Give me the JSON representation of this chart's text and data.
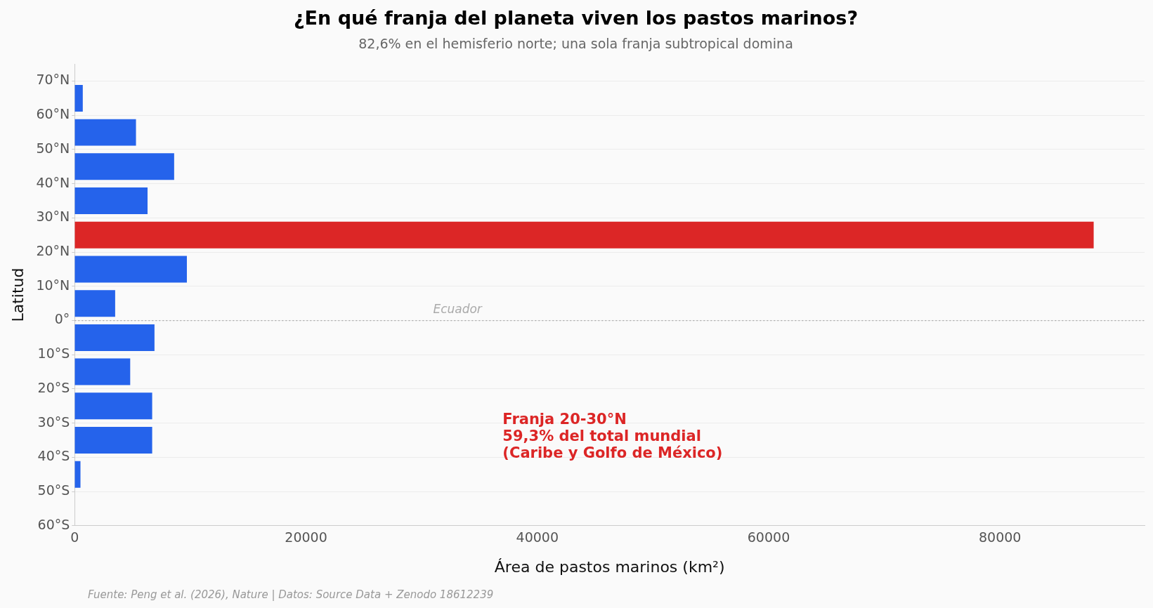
{
  "chart_data": {
    "type": "bar",
    "orientation": "horizontal",
    "title": "¿En qué franja del planeta viven los pastos marinos?",
    "subtitle": "82,6% en el hemisferio norte; una sola franja subtropical domina",
    "xlabel": "Área de pastos marinos (km²)",
    "ylabel": "Latitud",
    "x": [
      65,
      55,
      45,
      35,
      25,
      15,
      5,
      -5,
      -15,
      -25,
      -35,
      -45
    ],
    "values": [
      700,
      5300,
      8600,
      6300,
      88100,
      9700,
      3500,
      6900,
      4800,
      6700,
      6700,
      500
    ],
    "colors": [
      "#2563eb",
      "#2563eb",
      "#2563eb",
      "#2563eb",
      "#dc2626",
      "#2563eb",
      "#2563eb",
      "#2563eb",
      "#2563eb",
      "#2563eb",
      "#2563eb",
      "#2563eb"
    ],
    "xlim": [
      0,
      92500
    ],
    "xticks": [
      0,
      20000,
      40000,
      60000,
      80000
    ],
    "ylim": [
      -60,
      75
    ],
    "yticks": [
      {
        "value": 70,
        "label": "70°N"
      },
      {
        "value": 60,
        "label": "60°N"
      },
      {
        "value": 50,
        "label": "50°N"
      },
      {
        "value": 40,
        "label": "40°N"
      },
      {
        "value": 30,
        "label": "30°N"
      },
      {
        "value": 20,
        "label": "20°N"
      },
      {
        "value": 10,
        "label": "10°N"
      },
      {
        "value": 0,
        "label": "0°"
      },
      {
        "value": -10,
        "label": "10°S"
      },
      {
        "value": -20,
        "label": "20°S"
      },
      {
        "value": -30,
        "label": "30°S"
      },
      {
        "value": -40,
        "label": "40°S"
      },
      {
        "value": -50,
        "label": "50°S"
      },
      {
        "value": -60,
        "label": "60°S"
      }
    ],
    "grid": "y",
    "legend": false,
    "ref_lines": [
      {
        "axis": "y",
        "value": 0,
        "label": "Ecuador",
        "color": "#aaaaaa",
        "line_style": "dotted"
      }
    ],
    "annotations": [
      "Franja 20-30°N\n59,3% del total mundial\n(Caribe y Golfo de México)",
      "Fuente: Peng et al. (2026), Nature | Datos: Source Data + Zenodo 18612239"
    ]
  }
}
